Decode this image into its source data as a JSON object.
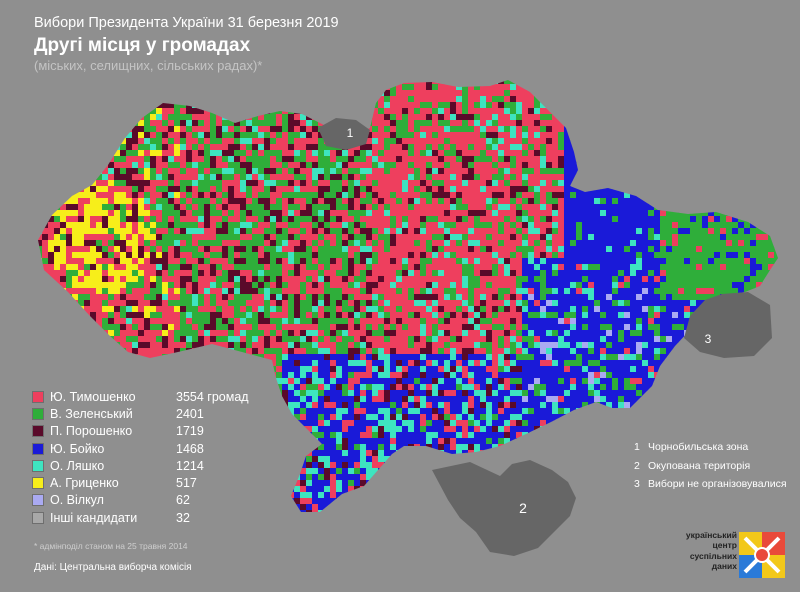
{
  "header": {
    "title": "Вибори Президента України 31 березня 2019",
    "subtitle": "Другі місця у громадах",
    "note": "(міських, селищних, сільських радах)*"
  },
  "legend": [
    {
      "name": "Ю. Тимошенко",
      "value": "3554 громад",
      "color": "#ee3f5e"
    },
    {
      "name": "В. Зеленський",
      "value": "2401",
      "color": "#2fae3a"
    },
    {
      "name": "П. Порошенко",
      "value": "1719",
      "color": "#5a0a2a"
    },
    {
      "name": "Ю. Бойко",
      "value": "1468",
      "color": "#1a1ad8"
    },
    {
      "name": "О. Ляшко",
      "value": "1214",
      "color": "#3ee4c0"
    },
    {
      "name": "А. Гриценко",
      "value": "517",
      "color": "#f7ee1a"
    },
    {
      "name": "О. Вілкул",
      "value": "62",
      "color": "#aaaaf2"
    },
    {
      "name": "Інші кандидати",
      "value": "32",
      "color": "#a8a8a8"
    }
  ],
  "zones": [
    {
      "num": "1",
      "label": "Чорнобильська зона"
    },
    {
      "num": "2",
      "label": "Окупована територія"
    },
    {
      "num": "3",
      "label": "Вибори не організовувалися"
    }
  ],
  "zone_markers": [
    "1",
    "2",
    "3"
  ],
  "footnote": "* адмінподіл станом на 25 травня 2014",
  "source": "Дані: Центральна виборча комісія",
  "logo": {
    "lines": [
      "український",
      "центр",
      "суспільних",
      "даних"
    ]
  },
  "colors": {
    "background": "#8f8f8f",
    "excluded": "#666666"
  }
}
